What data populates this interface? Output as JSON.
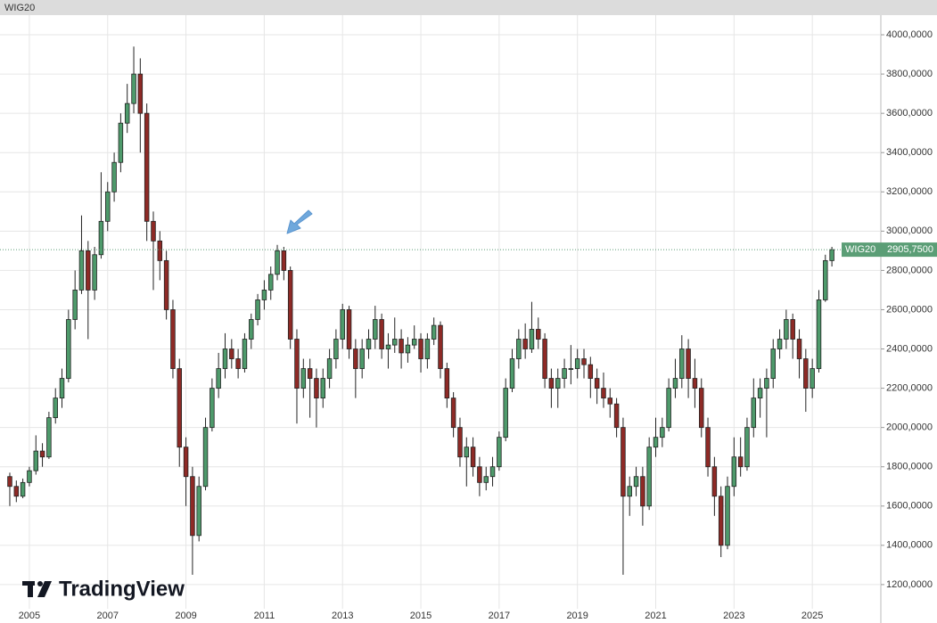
{
  "chart_data": {
    "type": "candlestick",
    "title": "WIG20",
    "logo": "TradingView",
    "x": [
      2004.5,
      2004.667,
      2004.833,
      2005,
      2005.167,
      2005.333,
      2005.5,
      2005.667,
      2005.833,
      2006,
      2006.167,
      2006.333,
      2006.5,
      2006.667,
      2006.833,
      2007,
      2007.167,
      2007.333,
      2007.5,
      2007.667,
      2007.833,
      2008,
      2008.167,
      2008.333,
      2008.5,
      2008.667,
      2008.833,
      2009,
      2009.167,
      2009.333,
      2009.5,
      2009.667,
      2009.833,
      2010,
      2010.167,
      2010.333,
      2010.5,
      2010.667,
      2010.833,
      2011,
      2011.167,
      2011.333,
      2011.5,
      2011.667,
      2011.833,
      2012,
      2012.167,
      2012.333,
      2012.5,
      2012.667,
      2012.833,
      2013,
      2013.167,
      2013.333,
      2013.5,
      2013.667,
      2013.833,
      2014,
      2014.167,
      2014.333,
      2014.5,
      2014.667,
      2014.833,
      2015,
      2015.167,
      2015.333,
      2015.5,
      2015.667,
      2015.833,
      2016,
      2016.167,
      2016.333,
      2016.5,
      2016.667,
      2016.833,
      2017,
      2017.167,
      2017.333,
      2017.5,
      2017.667,
      2017.833,
      2018,
      2018.167,
      2018.333,
      2018.5,
      2018.667,
      2018.833,
      2019,
      2019.167,
      2019.333,
      2019.5,
      2019.667,
      2019.833,
      2020,
      2020.167,
      2020.333,
      2020.5,
      2020.667,
      2020.833,
      2021,
      2021.167,
      2021.333,
      2021.5,
      2021.667,
      2021.833,
      2022,
      2022.167,
      2022.333,
      2022.5,
      2022.667,
      2022.833,
      2023,
      2023.167,
      2023.333,
      2023.5,
      2023.667,
      2023.833,
      2024,
      2024.167,
      2024.333,
      2024.5,
      2024.667,
      2024.833,
      2025,
      2025.167,
      2025.333,
      2025.5
    ],
    "series": [
      {
        "name": "WIG20",
        "up_color": "#4e9a6b",
        "down_color": "#8e2a26",
        "values": [
          [
            1750,
            1770,
            1600,
            1700
          ],
          [
            1700,
            1730,
            1620,
            1650
          ],
          [
            1650,
            1740,
            1640,
            1720
          ],
          [
            1720,
            1800,
            1700,
            1780
          ],
          [
            1780,
            1960,
            1760,
            1880
          ],
          [
            1880,
            1920,
            1800,
            1850
          ],
          [
            1850,
            2080,
            1840,
            2050
          ],
          [
            2050,
            2200,
            2020,
            2150
          ],
          [
            2150,
            2300,
            2100,
            2250
          ],
          [
            2250,
            2600,
            2230,
            2550
          ],
          [
            2550,
            2800,
            2500,
            2700
          ],
          [
            2700,
            3080,
            2680,
            2900
          ],
          [
            2900,
            2950,
            2450,
            2700
          ],
          [
            2700,
            2920,
            2650,
            2880
          ],
          [
            2880,
            3300,
            2860,
            3050
          ],
          [
            3050,
            3250,
            3000,
            3200
          ],
          [
            3200,
            3400,
            3150,
            3350
          ],
          [
            3350,
            3600,
            3300,
            3550
          ],
          [
            3550,
            3750,
            3500,
            3650
          ],
          [
            3650,
            3940,
            3600,
            3800
          ],
          [
            3800,
            3880,
            3400,
            3600
          ],
          [
            3600,
            3650,
            2950,
            3050
          ],
          [
            3050,
            3100,
            2700,
            2950
          ],
          [
            2950,
            3000,
            2750,
            2850
          ],
          [
            2850,
            2900,
            2550,
            2600
          ],
          [
            2600,
            2650,
            2250,
            2300
          ],
          [
            2300,
            2350,
            1800,
            1900
          ],
          [
            1900,
            1950,
            1600,
            1750
          ],
          [
            1750,
            1800,
            1250,
            1450
          ],
          [
            1450,
            1750,
            1420,
            1700
          ],
          [
            1700,
            2050,
            1680,
            2000
          ],
          [
            2000,
            2250,
            1980,
            2200
          ],
          [
            2200,
            2380,
            2150,
            2300
          ],
          [
            2300,
            2480,
            2250,
            2400
          ],
          [
            2400,
            2450,
            2300,
            2350
          ],
          [
            2350,
            2400,
            2250,
            2300
          ],
          [
            2300,
            2480,
            2280,
            2450
          ],
          [
            2450,
            2580,
            2400,
            2550
          ],
          [
            2550,
            2680,
            2520,
            2650
          ],
          [
            2650,
            2750,
            2600,
            2700
          ],
          [
            2700,
            2820,
            2650,
            2780
          ],
          [
            2780,
            2930,
            2750,
            2900
          ],
          [
            2900,
            2920,
            2750,
            2800
          ],
          [
            2800,
            2820,
            2400,
            2450
          ],
          [
            2450,
            2500,
            2020,
            2200
          ],
          [
            2200,
            2350,
            2150,
            2300
          ],
          [
            2300,
            2350,
            2050,
            2250
          ],
          [
            2250,
            2300,
            2000,
            2150
          ],
          [
            2150,
            2300,
            2100,
            2250
          ],
          [
            2250,
            2400,
            2200,
            2350
          ],
          [
            2350,
            2500,
            2300,
            2450
          ],
          [
            2450,
            2630,
            2400,
            2600
          ],
          [
            2600,
            2620,
            2350,
            2400
          ],
          [
            2400,
            2450,
            2150,
            2300
          ],
          [
            2300,
            2450,
            2250,
            2400
          ],
          [
            2400,
            2500,
            2350,
            2450
          ],
          [
            2450,
            2620,
            2400,
            2550
          ],
          [
            2550,
            2580,
            2350,
            2400
          ],
          [
            2400,
            2480,
            2300,
            2420
          ],
          [
            2420,
            2560,
            2380,
            2450
          ],
          [
            2450,
            2500,
            2300,
            2380
          ],
          [
            2380,
            2460,
            2330,
            2420
          ],
          [
            2420,
            2520,
            2400,
            2450
          ],
          [
            2450,
            2480,
            2280,
            2350
          ],
          [
            2350,
            2480,
            2300,
            2450
          ],
          [
            2450,
            2560,
            2420,
            2520
          ],
          [
            2520,
            2540,
            2250,
            2300
          ],
          [
            2300,
            2330,
            2100,
            2150
          ],
          [
            2150,
            2180,
            1950,
            2000
          ],
          [
            2000,
            2050,
            1800,
            1850
          ],
          [
            1850,
            1950,
            1700,
            1900
          ],
          [
            1900,
            1950,
            1750,
            1800
          ],
          [
            1800,
            1850,
            1650,
            1720
          ],
          [
            1720,
            1800,
            1680,
            1750
          ],
          [
            1750,
            1850,
            1700,
            1800
          ],
          [
            1800,
            1980,
            1780,
            1950
          ],
          [
            1950,
            2250,
            1930,
            2200
          ],
          [
            2200,
            2400,
            2180,
            2350
          ],
          [
            2350,
            2500,
            2300,
            2450
          ],
          [
            2450,
            2530,
            2350,
            2400
          ],
          [
            2400,
            2640,
            2380,
            2500
          ],
          [
            2500,
            2560,
            2400,
            2450
          ],
          [
            2450,
            2480,
            2200,
            2250
          ],
          [
            2250,
            2300,
            2100,
            2200
          ],
          [
            2200,
            2300,
            2100,
            2250
          ],
          [
            2250,
            2350,
            2200,
            2300
          ],
          [
            2300,
            2420,
            2220,
            2300
          ],
          [
            2300,
            2400,
            2250,
            2350
          ],
          [
            2350,
            2400,
            2250,
            2320
          ],
          [
            2320,
            2360,
            2150,
            2250
          ],
          [
            2250,
            2300,
            2120,
            2200
          ],
          [
            2200,
            2280,
            2100,
            2150
          ],
          [
            2150,
            2200,
            2050,
            2120
          ],
          [
            2120,
            2150,
            1950,
            2000
          ],
          [
            2000,
            2050,
            1250,
            1650
          ],
          [
            1650,
            1750,
            1550,
            1700
          ],
          [
            1700,
            1800,
            1650,
            1750
          ],
          [
            1750,
            1800,
            1500,
            1600
          ],
          [
            1600,
            1950,
            1580,
            1900
          ],
          [
            1900,
            2050,
            1850,
            1950
          ],
          [
            1950,
            2050,
            1900,
            2000
          ],
          [
            2000,
            2250,
            1980,
            2200
          ],
          [
            2200,
            2350,
            2150,
            2250
          ],
          [
            2250,
            2470,
            2200,
            2400
          ],
          [
            2400,
            2450,
            2150,
            2250
          ],
          [
            2250,
            2350,
            2100,
            2200
          ],
          [
            2200,
            2250,
            1950,
            2000
          ],
          [
            2000,
            2050,
            1750,
            1800
          ],
          [
            1800,
            1850,
            1550,
            1650
          ],
          [
            1650,
            1700,
            1340,
            1400
          ],
          [
            1400,
            1750,
            1380,
            1700
          ],
          [
            1700,
            1950,
            1650,
            1850
          ],
          [
            1850,
            1950,
            1750,
            1800
          ],
          [
            1800,
            2050,
            1780,
            2000
          ],
          [
            2000,
            2250,
            1950,
            2150
          ],
          [
            2150,
            2250,
            2050,
            2200
          ],
          [
            2200,
            2300,
            1950,
            2250
          ],
          [
            2250,
            2450,
            2200,
            2400
          ],
          [
            2400,
            2500,
            2350,
            2450
          ],
          [
            2450,
            2600,
            2400,
            2550
          ],
          [
            2550,
            2580,
            2350,
            2450
          ],
          [
            2450,
            2500,
            2250,
            2350
          ],
          [
            2350,
            2400,
            2080,
            2200
          ],
          [
            2200,
            2350,
            2150,
            2300
          ],
          [
            2300,
            2700,
            2280,
            2650
          ],
          [
            2650,
            2880,
            2640,
            2850
          ],
          [
            2850,
            2920,
            2820,
            2905.75
          ]
        ]
      }
    ],
    "last_price": {
      "value": 2905.75,
      "label": "2905,7500"
    },
    "last_price_color": "#5b9e76",
    "xlim": [
      2004.25,
      2026.75
    ],
    "ylim": [
      1077,
      4100
    ],
    "xticks": [
      2005,
      2007,
      2009,
      2011,
      2013,
      2015,
      2017,
      2019,
      2021,
      2023,
      2025
    ],
    "yticks": [
      {
        "value": 1200,
        "label": "1200,0000"
      },
      {
        "value": 1400,
        "label": "1400,0000"
      },
      {
        "value": 1600,
        "label": "1600,0000"
      },
      {
        "value": 1800,
        "label": "1800,0000"
      },
      {
        "value": 2000,
        "label": "2000,0000"
      },
      {
        "value": 2200,
        "label": "2200,0000"
      },
      {
        "value": 2400,
        "label": "2400,0000"
      },
      {
        "value": 2600,
        "label": "2600,0000"
      },
      {
        "value": 2800,
        "label": "2800,0000"
      },
      {
        "value": 3000,
        "label": "3000,0000"
      },
      {
        "value": 3200,
        "label": "3200,0000"
      },
      {
        "value": 3400,
        "label": "3400,0000"
      },
      {
        "value": 3600,
        "label": "3600,0000"
      },
      {
        "value": 3800,
        "label": "3800,0000"
      },
      {
        "value": 4000,
        "label": "4000,0000"
      }
    ],
    "grid": true
  }
}
